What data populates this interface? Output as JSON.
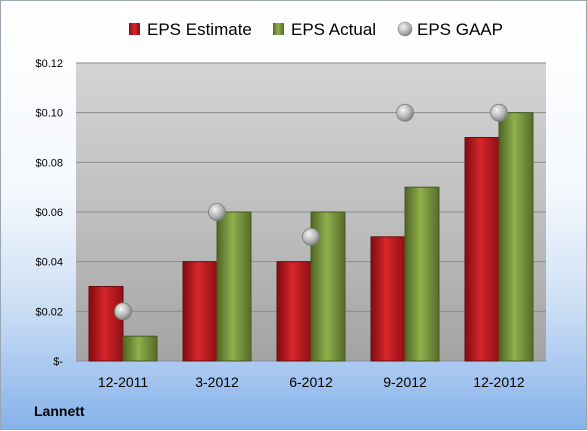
{
  "company": "Lannett",
  "chart_data": {
    "type": "bar",
    "categories": [
      "12-2011",
      "3-2012",
      "6-2012",
      "9-2012",
      "12-2012"
    ],
    "series": [
      {
        "name": "EPS Estimate",
        "type": "bar",
        "color": "#c0161b",
        "values": [
          0.03,
          0.04,
          0.04,
          0.05,
          0.09
        ]
      },
      {
        "name": "EPS Actual",
        "type": "bar",
        "color": "#77933c",
        "values": [
          0.01,
          0.06,
          0.06,
          0.07,
          0.1
        ]
      },
      {
        "name": "EPS GAAP",
        "type": "marker",
        "color": "#a6a6a6",
        "values": [
          0.02,
          0.06,
          0.05,
          0.1,
          0.1
        ]
      }
    ],
    "yticks": [
      "$-",
      "$0.02",
      "$0.04",
      "$0.06",
      "$0.08",
      "$0.10",
      "$0.12"
    ],
    "ylim": [
      0,
      0.12
    ],
    "grid": true,
    "legend_position": "top"
  }
}
